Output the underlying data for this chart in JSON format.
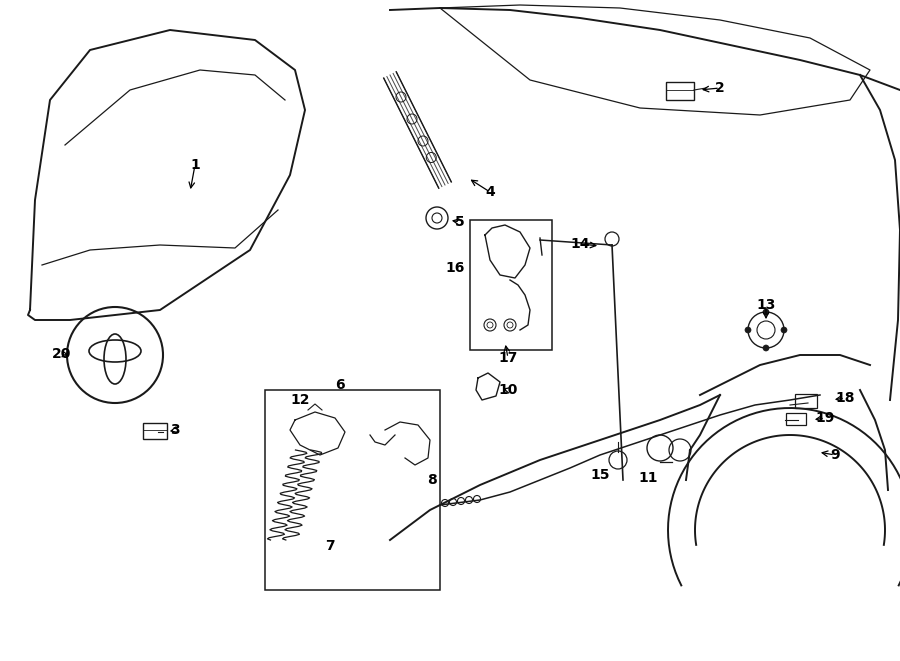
{
  "bg_color": "#ffffff",
  "line_color": "#1a1a1a",
  "label_color": "#000000",
  "fig_width": 9.0,
  "fig_height": 6.61,
  "dpi": 100
}
